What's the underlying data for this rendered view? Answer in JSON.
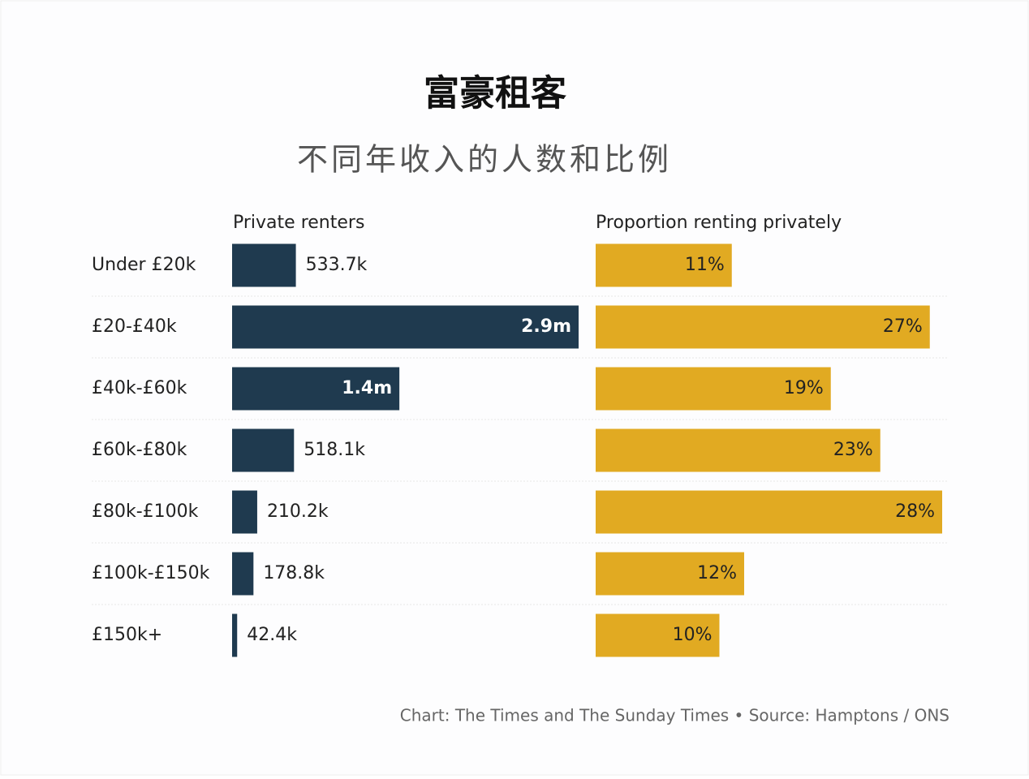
{
  "title": "富豪租客",
  "subtitle": "不同年收入的人数和比例",
  "source": "Chart: The Times and The Sunday Times • Source: Hamptons / ONS",
  "chart_data": [
    {
      "type": "bar",
      "title": "Private renters",
      "categories": [
        "Under £20k",
        "£20-£40k",
        "£40k-£60k",
        "£60k-£80k",
        "£80k-£100k",
        "£100k-£150k",
        "£150k+"
      ],
      "values": [
        533700,
        2900000,
        1400000,
        518100,
        210200,
        178800,
        42400
      ],
      "value_labels": [
        "533.7k",
        "2.9m",
        "1.4m",
        "518.1k",
        "210.2k",
        "178.8k",
        "42.4k"
      ],
      "color": "#1f3a4f"
    },
    {
      "type": "bar",
      "title": "Proportion renting privately",
      "values": [
        11,
        27,
        19,
        23,
        28,
        12,
        10
      ],
      "value_labels": [
        "11%",
        "27%",
        "19%",
        "23%",
        "28%",
        "12%",
        "10%"
      ],
      "color": "#e1aa22"
    }
  ]
}
